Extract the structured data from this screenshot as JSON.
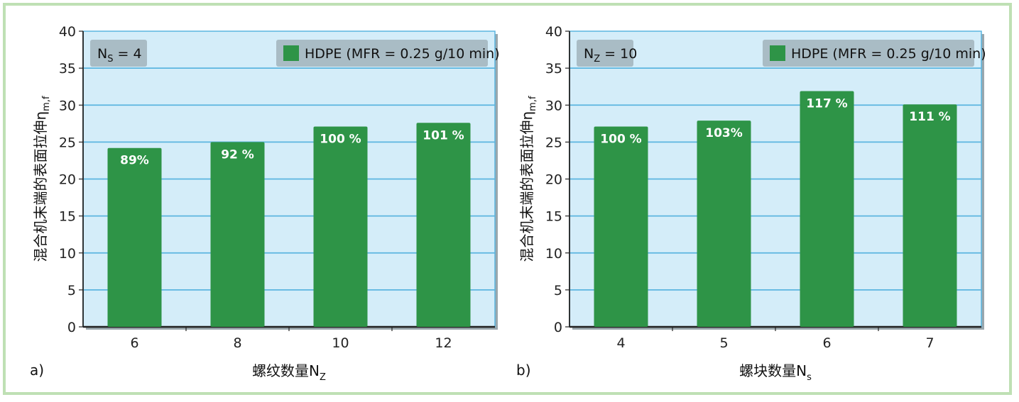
{
  "colors": {
    "plot_bg": "#d4edf9",
    "grid": "#5bb5e0",
    "bar": "#2e9447",
    "box_bg": "#a9bcc5",
    "frame": "#bfe0b4"
  },
  "chart_data": [
    {
      "type": "bar",
      "panel_label": "a)",
      "condition": {
        "main": "N",
        "sub": "S",
        "rest": " = 4"
      },
      "legend": {
        "label": "HDPE (MFR = 0.25 g/10 min)",
        "placement": "top-right"
      },
      "xlabel": {
        "main": "螺纹数量N",
        "sub": "Z"
      },
      "ylabel": {
        "main": "混合机末端的表面拉伸η",
        "sub": "m,f"
      },
      "categories": [
        "6",
        "8",
        "10",
        "12"
      ],
      "values": [
        24.2,
        25.0,
        27.1,
        27.6
      ],
      "data_labels": [
        "89%",
        "92 %",
        "100 %",
        "101 %"
      ],
      "ylim": [
        0,
        40
      ],
      "yticks": [
        "0",
        "5",
        "10",
        "15",
        "20",
        "25",
        "30",
        "35",
        "40"
      ],
      "grid": true
    },
    {
      "type": "bar",
      "panel_label": "b)",
      "condition": {
        "main": "N",
        "sub": "Z",
        "rest": " = 10"
      },
      "legend": {
        "label": "HDPE (MFR = 0.25 g/10 min)",
        "placement": "top-right"
      },
      "xlabel": {
        "main": "螺块数量N",
        "sub": "s"
      },
      "ylabel": {
        "main": "混合机末端的表面拉伸η",
        "sub": "m,f"
      },
      "categories": [
        "4",
        "5",
        "6",
        "7"
      ],
      "values": [
        27.1,
        27.9,
        31.9,
        30.1
      ],
      "data_labels": [
        "100 %",
        "103%",
        "117 %",
        "111 %"
      ],
      "ylim": [
        0,
        40
      ],
      "yticks": [
        "0",
        "5",
        "10",
        "15",
        "20",
        "25",
        "30",
        "35",
        "40"
      ],
      "grid": true
    }
  ]
}
